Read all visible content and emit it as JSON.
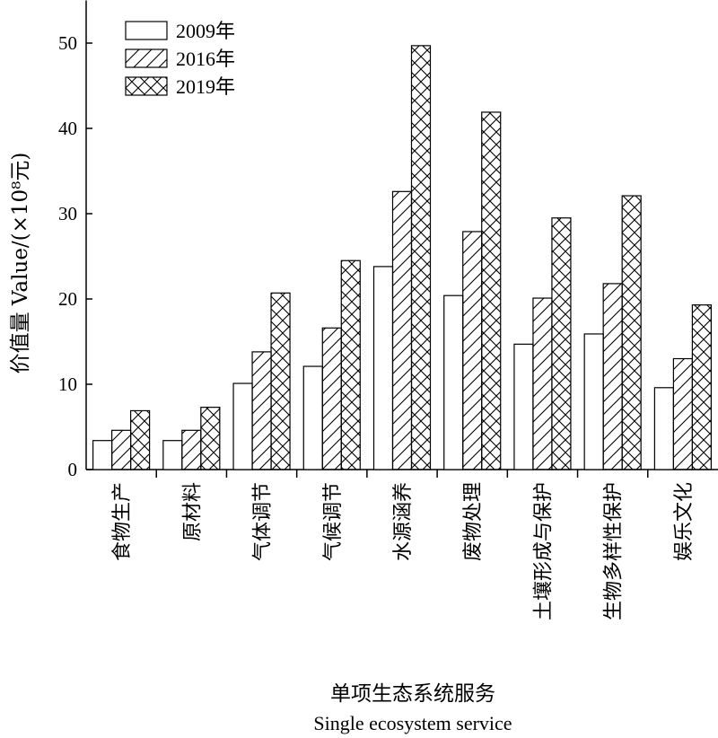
{
  "chart_data": {
    "type": "bar",
    "title": "",
    "ylabel": "价值量 Value/(×10⁸元)",
    "xlabel_cn": "单项生态系统服务",
    "xlabel_en": "Single ecosystem service",
    "ylim": [
      0,
      55
    ],
    "yticks": [
      0,
      10,
      20,
      30,
      40,
      50
    ],
    "grid": false,
    "legend_position": "top-left",
    "categories": [
      "食物生产",
      "原材料",
      "气体调节",
      "气候调节",
      "水源涵养",
      "废物处理",
      "土壤形成与保护",
      "生物多样性保护",
      "娱乐文化"
    ],
    "series": [
      {
        "name": "2009年",
        "pattern": "none",
        "values": [
          3.4,
          3.4,
          10.1,
          12.1,
          23.8,
          20.4,
          14.7,
          15.9,
          9.6
        ]
      },
      {
        "name": "2016年",
        "pattern": "diagonal",
        "values": [
          4.6,
          4.6,
          13.8,
          16.6,
          32.6,
          27.9,
          20.1,
          21.8,
          13.0
        ]
      },
      {
        "name": "2019年",
        "pattern": "crosshatch",
        "values": [
          6.9,
          7.3,
          20.7,
          24.5,
          49.7,
          41.9,
          29.5,
          32.1,
          19.3
        ]
      }
    ]
  }
}
